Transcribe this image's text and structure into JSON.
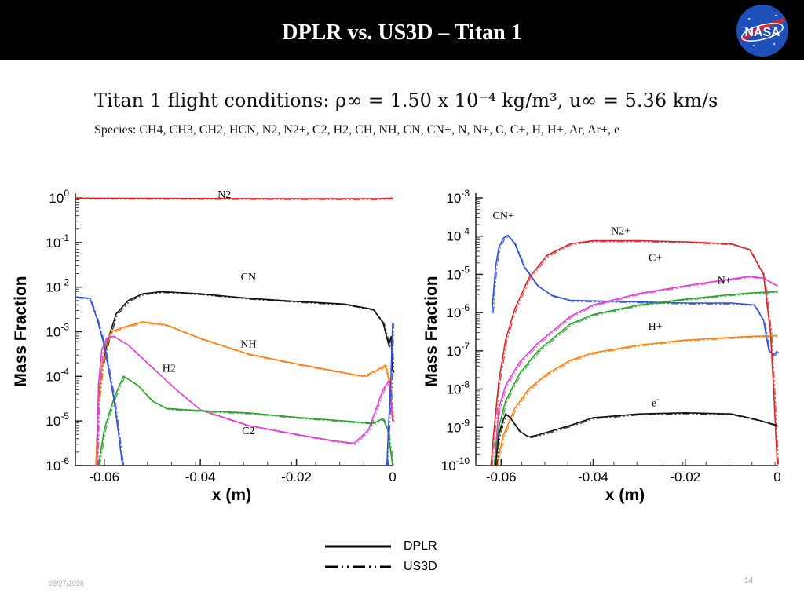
{
  "header": {
    "title": "DPLR vs. US3D – Titan 1",
    "logo_text": "NASA"
  },
  "conditions_text": "Titan 1 flight conditions: ρ∞ = 1.50 x 10⁻⁴ kg/m³, u∞ = 5.36 km/s",
  "species_text": "Species: CH4, CH3, CH2, HCN, N2, N2+, C2, H2, CH, NH, CN, CN+, N, N+, C, C+, H, H+, Ar, Ar+, e",
  "legend": [
    {
      "label": "DPLR",
      "style": "solid"
    },
    {
      "label": "US3D",
      "style": "dash-dot-dot"
    }
  ],
  "footer": {
    "date": "09/27/2026",
    "page": "14"
  },
  "chart_data": [
    {
      "type": "line",
      "xlabel": "x (m)",
      "ylabel": "Mass Fraction",
      "xlim": [
        -0.066,
        0.0
      ],
      "ylim_exp": [
        -6,
        0
      ],
      "yscale": "log",
      "xticks": [
        "-0.06",
        "-0.04",
        "-0.02",
        "0"
      ],
      "xtick_values": [
        -0.06,
        -0.04,
        -0.02,
        0
      ],
      "yticks": [
        {
          "base": "10",
          "exp": "0"
        },
        {
          "base": "10",
          "exp": "-1"
        },
        {
          "base": "10",
          "exp": "-2"
        },
        {
          "base": "10",
          "exp": "-3"
        },
        {
          "base": "10",
          "exp": "-4"
        },
        {
          "base": "10",
          "exp": "-5"
        },
        {
          "base": "10",
          "exp": "-6"
        }
      ],
      "series": [
        {
          "name": "N2",
          "color": "#d62728",
          "label_at": [
            -0.035,
            0.0
          ],
          "points": [
            [
              -0.066,
              -0.005
            ],
            [
              -0.05,
              -0.01
            ],
            [
              -0.03,
              -0.015
            ],
            [
              -0.01,
              -0.02
            ],
            [
              -0.003,
              -0.02
            ],
            [
              0.0,
              -0.005
            ]
          ]
        },
        {
          "name": "CN",
          "color": "#111111",
          "label_at": [
            -0.03,
            -1.85
          ],
          "points": [
            [
              -0.0617,
              -6.0
            ],
            [
              -0.0612,
              -4.5
            ],
            [
              -0.0605,
              -3.8
            ],
            [
              -0.059,
              -3.1
            ],
            [
              -0.0575,
              -2.6
            ],
            [
              -0.055,
              -2.3
            ],
            [
              -0.052,
              -2.15
            ],
            [
              -0.048,
              -2.1
            ],
            [
              -0.04,
              -2.15
            ],
            [
              -0.03,
              -2.25
            ],
            [
              -0.02,
              -2.32
            ],
            [
              -0.01,
              -2.38
            ],
            [
              -0.004,
              -2.5
            ],
            [
              -0.002,
              -2.8
            ],
            [
              -0.0008,
              -3.3
            ],
            [
              -0.0003,
              -3.1
            ],
            [
              0.0,
              -3.9
            ]
          ]
        },
        {
          "name": "NH",
          "color": "#ff7f0e",
          "label_at": [
            -0.03,
            -3.35
          ],
          "points": [
            [
              -0.0617,
              -6.0
            ],
            [
              -0.0612,
              -4.6
            ],
            [
              -0.0605,
              -3.8
            ],
            [
              -0.0595,
              -3.2
            ],
            [
              -0.0585,
              -3.0
            ],
            [
              -0.056,
              -2.9
            ],
            [
              -0.052,
              -2.78
            ],
            [
              -0.047,
              -2.85
            ],
            [
              -0.04,
              -3.15
            ],
            [
              -0.03,
              -3.5
            ],
            [
              -0.02,
              -3.72
            ],
            [
              -0.01,
              -3.92
            ],
            [
              -0.006,
              -4.0
            ],
            [
              -0.003,
              -3.85
            ],
            [
              -0.0015,
              -3.75
            ],
            [
              -0.0005,
              -4.2
            ],
            [
              0.0,
              -5.0
            ]
          ]
        },
        {
          "name": "H2",
          "color": "#e040d0",
          "label_at": [
            -0.0465,
            -3.9
          ],
          "points": [
            [
              -0.0615,
              -6.0
            ],
            [
              -0.0612,
              -4.2
            ],
            [
              -0.0605,
              -3.4
            ],
            [
              -0.0595,
              -3.15
            ],
            [
              -0.058,
              -3.1
            ],
            [
              -0.055,
              -3.3
            ],
            [
              -0.05,
              -3.8
            ],
            [
              -0.045,
              -4.3
            ],
            [
              -0.04,
              -4.75
            ],
            [
              -0.03,
              -5.1
            ],
            [
              -0.02,
              -5.3
            ],
            [
              -0.012,
              -5.45
            ],
            [
              -0.008,
              -5.5
            ],
            [
              -0.005,
              -5.2
            ],
            [
              -0.002,
              -4.3
            ],
            [
              -0.0008,
              -4.1
            ],
            [
              0.0,
              -5.0
            ]
          ]
        },
        {
          "name": "C2",
          "color": "#2ca02c",
          "label_at": [
            -0.03,
            -5.3
          ],
          "points": [
            [
              -0.0612,
              -6.0
            ],
            [
              -0.06,
              -5.2
            ],
            [
              -0.058,
              -4.5
            ],
            [
              -0.056,
              -4.0
            ],
            [
              -0.053,
              -4.2
            ],
            [
              -0.05,
              -4.55
            ],
            [
              -0.047,
              -4.72
            ],
            [
              -0.04,
              -4.77
            ],
            [
              -0.03,
              -4.82
            ],
            [
              -0.02,
              -4.92
            ],
            [
              -0.01,
              -5.0
            ],
            [
              -0.004,
              -5.05
            ],
            [
              -0.002,
              -4.95
            ],
            [
              -0.001,
              -5.2
            ],
            [
              0.0,
              -6.0
            ]
          ]
        },
        {
          "name": "",
          "color": "#3050d0",
          "points": [
            [
              -0.066,
              -2.22
            ],
            [
              -0.063,
              -2.25
            ],
            [
              -0.0615,
              -2.7
            ],
            [
              -0.06,
              -3.3
            ],
            [
              -0.058,
              -4.5
            ],
            [
              -0.057,
              -5.3
            ],
            [
              -0.0562,
              -6.0
            ]
          ]
        },
        {
          "name": "",
          "color": "#3050d0",
          "points": [
            [
              -0.0012,
              -6.0
            ],
            [
              -0.0008,
              -5.0
            ],
            [
              -0.0004,
              -4.2
            ],
            [
              0.0,
              -2.8
            ]
          ]
        }
      ]
    },
    {
      "type": "line",
      "xlabel": "x (m)",
      "ylabel": "Mass Fraction",
      "xlim": [
        -0.0655,
        0.0
      ],
      "ylim_exp": [
        -10,
        -3
      ],
      "yscale": "log",
      "xticks": [
        "-0.06",
        "-0.04",
        "-0.02",
        "0"
      ],
      "xtick_values": [
        -0.06,
        -0.04,
        -0.02,
        0
      ],
      "yticks": [
        {
          "base": "10",
          "exp": "-3"
        },
        {
          "base": "10",
          "exp": "-4"
        },
        {
          "base": "10",
          "exp": "-5"
        },
        {
          "base": "10",
          "exp": "-6"
        },
        {
          "base": "10",
          "exp": "-7"
        },
        {
          "base": "10",
          "exp": "-8"
        },
        {
          "base": "10",
          "exp": "-9"
        },
        {
          "base": "10",
          "exp": "-10"
        }
      ],
      "series": [
        {
          "name": "CN+",
          "color": "#3050d0",
          "label_at": [
            -0.0595,
            -3.55
          ],
          "points": [
            [
              -0.062,
              -6.0
            ],
            [
              -0.0612,
              -4.8
            ],
            [
              -0.0605,
              -4.3
            ],
            [
              -0.0595,
              -4.05
            ],
            [
              -0.0585,
              -3.98
            ],
            [
              -0.057,
              -4.2
            ],
            [
              -0.055,
              -4.8
            ],
            [
              -0.052,
              -5.3
            ],
            [
              -0.049,
              -5.55
            ],
            [
              -0.045,
              -5.68
            ],
            [
              -0.03,
              -5.72
            ],
            [
              -0.02,
              -5.75
            ],
            [
              -0.01,
              -5.75
            ],
            [
              -0.005,
              -5.8
            ],
            [
              -0.003,
              -6.2
            ],
            [
              -0.0018,
              -7.0
            ],
            [
              -0.0008,
              -7.1
            ],
            [
              0.0,
              -7.0
            ]
          ]
        },
        {
          "name": "N2+",
          "color": "#d62728",
          "label_at": [
            -0.034,
            -3.95
          ],
          "points": [
            [
              -0.0622,
              -10.0
            ],
            [
              -0.0615,
              -9.0
            ],
            [
              -0.0605,
              -7.8
            ],
            [
              -0.059,
              -6.7
            ],
            [
              -0.057,
              -5.9
            ],
            [
              -0.054,
              -5.1
            ],
            [
              -0.05,
              -4.5
            ],
            [
              -0.045,
              -4.2
            ],
            [
              -0.04,
              -4.12
            ],
            [
              -0.03,
              -4.12
            ],
            [
              -0.02,
              -4.15
            ],
            [
              -0.01,
              -4.2
            ],
            [
              -0.006,
              -4.35
            ],
            [
              -0.003,
              -5.0
            ],
            [
              -0.0015,
              -6.5
            ],
            [
              -0.0008,
              -8.0
            ],
            [
              0.0,
              -10.0
            ]
          ]
        },
        {
          "name": "C+",
          "color": "#e040d0",
          "label_at": [
            -0.0265,
            -4.65
          ],
          "points": [
            [
              -0.0615,
              -10.0
            ],
            [
              -0.0605,
              -8.5
            ],
            [
              -0.059,
              -7.9
            ],
            [
              -0.056,
              -7.3
            ],
            [
              -0.052,
              -6.8
            ],
            [
              -0.045,
              -6.1
            ],
            [
              -0.04,
              -5.8
            ],
            [
              -0.03,
              -5.5
            ],
            [
              -0.02,
              -5.3
            ],
            [
              -0.01,
              -5.12
            ],
            [
              -0.006,
              -5.05
            ],
            [
              -0.003,
              -5.1
            ],
            [
              0.0,
              -5.3
            ]
          ]
        },
        {
          "name": "N+",
          "color": "#2ca02c",
          "label_at": [
            -0.0115,
            -5.25
          ],
          "points": [
            [
              -0.0615,
              -10.0
            ],
            [
              -0.0605,
              -9.0
            ],
            [
              -0.059,
              -8.3
            ],
            [
              -0.056,
              -7.6
            ],
            [
              -0.052,
              -7.0
            ],
            [
              -0.045,
              -6.3
            ],
            [
              -0.04,
              -6.05
            ],
            [
              -0.03,
              -5.8
            ],
            [
              -0.02,
              -5.65
            ],
            [
              -0.01,
              -5.53
            ],
            [
              -0.005,
              -5.48
            ],
            [
              0.0,
              -5.45
            ]
          ]
        },
        {
          "name": "H+",
          "color": "#ff7f0e",
          "label_at": [
            -0.0265,
            -6.45
          ],
          "points": [
            [
              -0.061,
              -10.0
            ],
            [
              -0.0595,
              -9.2
            ],
            [
              -0.057,
              -8.5
            ],
            [
              -0.054,
              -8.0
            ],
            [
              -0.05,
              -7.6
            ],
            [
              -0.045,
              -7.25
            ],
            [
              -0.04,
              -7.05
            ],
            [
              -0.03,
              -6.85
            ],
            [
              -0.02,
              -6.72
            ],
            [
              -0.01,
              -6.65
            ],
            [
              -0.005,
              -6.62
            ],
            [
              0.0,
              -6.6
            ]
          ]
        },
        {
          "name": "e",
          "label_sup": "-",
          "color": "#111111",
          "label_at": [
            -0.0265,
            -8.45
          ],
          "points": [
            [
              -0.0612,
              -10.0
            ],
            [
              -0.0605,
              -9.2
            ],
            [
              -0.0595,
              -8.8
            ],
            [
              -0.059,
              -8.65
            ],
            [
              -0.058,
              -8.75
            ],
            [
              -0.056,
              -9.1
            ],
            [
              -0.054,
              -9.25
            ],
            [
              -0.052,
              -9.2
            ],
            [
              -0.045,
              -8.95
            ],
            [
              -0.04,
              -8.75
            ],
            [
              -0.03,
              -8.65
            ],
            [
              -0.02,
              -8.62
            ],
            [
              -0.01,
              -8.65
            ],
            [
              -0.005,
              -8.78
            ],
            [
              0.0,
              -8.95
            ]
          ]
        }
      ]
    }
  ]
}
